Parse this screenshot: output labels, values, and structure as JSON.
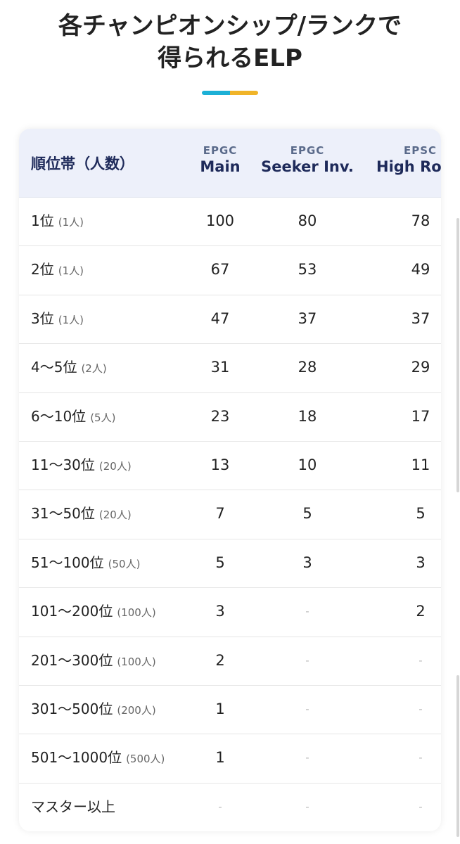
{
  "header": {
    "title_lines": [
      "各チャンピオンシップ/ランクで",
      "得られるELP"
    ]
  },
  "table": {
    "rank_header": "順位帯（人数）",
    "columns": [
      {
        "tag": "EPGC",
        "name": "Main"
      },
      {
        "tag": "EPGC",
        "name": "Seeker Inv."
      },
      {
        "tag": "EPSC",
        "name": "High Roller"
      }
    ],
    "rows": [
      {
        "rank": "1位",
        "count": "(1人)",
        "values": [
          100,
          80,
          78
        ]
      },
      {
        "rank": "2位",
        "count": "(1人)",
        "values": [
          67,
          53,
          49
        ]
      },
      {
        "rank": "3位",
        "count": "(1人)",
        "values": [
          47,
          37,
          37
        ]
      },
      {
        "rank": "4〜5位",
        "count": "(2人)",
        "values": [
          31,
          28,
          29
        ]
      },
      {
        "rank": "6〜10位",
        "count": "(5人)",
        "values": [
          23,
          18,
          17
        ]
      },
      {
        "rank": "11〜30位",
        "count": "(20人)",
        "values": [
          13,
          10,
          11
        ]
      },
      {
        "rank": "31〜50位",
        "count": "(20人)",
        "values": [
          7,
          5,
          5
        ]
      },
      {
        "rank": "51〜100位",
        "count": "(50人)",
        "values": [
          5,
          3,
          3
        ]
      },
      {
        "rank": "101〜200位",
        "count": "(100人)",
        "values": [
          3,
          "-",
          2
        ]
      },
      {
        "rank": "201〜300位",
        "count": "(100人)",
        "values": [
          2,
          "-",
          "-"
        ]
      },
      {
        "rank": "301〜500位",
        "count": "(200人)",
        "values": [
          1,
          "-",
          "-"
        ]
      },
      {
        "rank": "501〜1000位",
        "count": "(500人)",
        "values": [
          1,
          "-",
          "-"
        ]
      },
      {
        "rank": "マスター以上",
        "values": [
          "-",
          "-",
          "-"
        ]
      }
    ]
  }
}
